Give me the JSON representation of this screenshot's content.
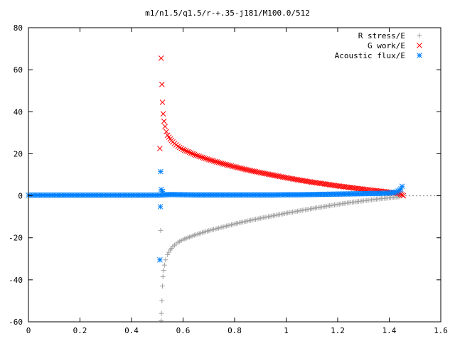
{
  "chart_data": {
    "type": "scatter",
    "title": "m1/n1.5/q1.5/r-+.35-j181/M100.0/512",
    "xlabel": "",
    "ylabel": "",
    "xlim": [
      0,
      1.6
    ],
    "ylim": [
      -60,
      80
    ],
    "xticks": [
      0,
      0.2,
      0.4,
      0.6,
      0.8,
      1,
      1.2,
      1.4,
      1.6
    ],
    "xtick_labels": [
      "0",
      "0.2",
      "0.4",
      "0.6",
      "0.8",
      "1",
      "1.2",
      "1.4",
      "1.6"
    ],
    "yticks": [
      -60,
      -40,
      -20,
      0,
      20,
      40,
      60,
      80
    ],
    "ytick_labels": [
      "-60",
      "-40",
      "-20",
      "0",
      "20",
      "40",
      "60",
      "80"
    ],
    "grid": false,
    "legend_position": "top-right",
    "series": [
      {
        "name": "R stress/E",
        "marker": "plus",
        "color": "#a0a0a0",
        "points": [
          [
            0.515,
            -59.5
          ],
          [
            0.516,
            -56
          ],
          [
            0.518,
            -50
          ],
          [
            0.52,
            -43
          ],
          [
            0.522,
            -38.5
          ],
          [
            0.525,
            -35.5
          ],
          [
            0.528,
            -33
          ],
          [
            0.532,
            -30.5
          ],
          [
            0.54,
            -28
          ],
          [
            0.55,
            -25.8
          ],
          [
            0.56,
            -24.2
          ],
          [
            0.58,
            -22.2
          ],
          [
            0.6,
            -20.8
          ],
          [
            0.65,
            -18.5
          ],
          [
            0.7,
            -16.6
          ],
          [
            0.75,
            -15
          ],
          [
            0.8,
            -13.4
          ],
          [
            0.85,
            -12
          ],
          [
            0.9,
            -10.7
          ],
          [
            0.95,
            -9.5
          ],
          [
            1.0,
            -8.3
          ],
          [
            1.05,
            -7.2
          ],
          [
            1.1,
            -6.1
          ],
          [
            1.15,
            -5.1
          ],
          [
            1.2,
            -4.1
          ],
          [
            1.25,
            -3.2
          ],
          [
            1.3,
            -2.4
          ],
          [
            1.35,
            -1.6
          ],
          [
            1.4,
            -1.0
          ],
          [
            1.44,
            -0.5
          ]
        ],
        "outliers": [
          [
            0.513,
            -16.5
          ]
        ]
      },
      {
        "name": "G work/E",
        "marker": "cross",
        "color": "#ff0000",
        "points": [
          [
            0.515,
            65.5
          ],
          [
            0.518,
            53
          ],
          [
            0.52,
            44.5
          ],
          [
            0.523,
            39
          ],
          [
            0.526,
            35.5
          ],
          [
            0.53,
            33
          ],
          [
            0.535,
            30.5
          ],
          [
            0.54,
            28.8
          ],
          [
            0.55,
            27
          ],
          [
            0.56,
            25.6
          ],
          [
            0.58,
            23.5
          ],
          [
            0.6,
            22
          ],
          [
            0.65,
            19.3
          ],
          [
            0.7,
            17.2
          ],
          [
            0.75,
            15.4
          ],
          [
            0.8,
            13.8
          ],
          [
            0.85,
            12.3
          ],
          [
            0.9,
            11
          ],
          [
            0.95,
            9.8
          ],
          [
            1.0,
            8.6
          ],
          [
            1.05,
            7.5
          ],
          [
            1.1,
            6.5
          ],
          [
            1.15,
            5.6
          ],
          [
            1.2,
            4.7
          ],
          [
            1.25,
            3.9
          ],
          [
            1.3,
            3.1
          ],
          [
            1.35,
            2.4
          ],
          [
            1.4,
            1.7
          ],
          [
            1.44,
            1.1
          ],
          [
            1.455,
            0
          ]
        ],
        "outliers": [
          [
            0.51,
            22.5
          ]
        ]
      },
      {
        "name": "Acoustic flux/E",
        "marker": "star",
        "color": "#0080ff",
        "points": [
          [
            0,
            0.3
          ],
          [
            0.05,
            0.3
          ],
          [
            0.1,
            0.3
          ],
          [
            0.15,
            0.3
          ],
          [
            0.2,
            0.3
          ],
          [
            0.25,
            0.3
          ],
          [
            0.3,
            0.3
          ],
          [
            0.35,
            0.3
          ],
          [
            0.4,
            0.3
          ],
          [
            0.45,
            0.3
          ],
          [
            0.5,
            0.3
          ],
          [
            0.55,
            0.6
          ],
          [
            0.6,
            0.5
          ],
          [
            0.65,
            0.4
          ],
          [
            0.7,
            0.4
          ],
          [
            0.75,
            0.4
          ],
          [
            0.8,
            0.4
          ],
          [
            0.85,
            0.4
          ],
          [
            0.9,
            0.4
          ],
          [
            0.95,
            0.4
          ],
          [
            1.0,
            0.5
          ],
          [
            1.05,
            0.5
          ],
          [
            1.1,
            0.6
          ],
          [
            1.15,
            0.7
          ],
          [
            1.2,
            0.8
          ],
          [
            1.25,
            0.9
          ],
          [
            1.3,
            1.0
          ],
          [
            1.35,
            1.1
          ],
          [
            1.4,
            1.3
          ],
          [
            1.43,
            1.8
          ],
          [
            1.445,
            3.2
          ],
          [
            1.45,
            4.5
          ]
        ],
        "outliers": [
          [
            0.513,
            11.5
          ],
          [
            0.515,
            3.0
          ],
          [
            0.52,
            2.0
          ],
          [
            0.512,
            -5.2
          ],
          [
            0.51,
            -30.5
          ]
        ]
      }
    ]
  }
}
